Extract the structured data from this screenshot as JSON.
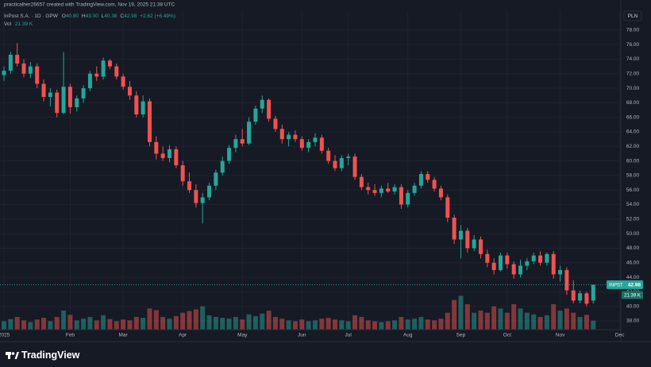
{
  "watermark": "practicalher26657 created with TradingView.com, Nov 19, 2025 21:38 UTC",
  "header": {
    "symbol": "InPost S.A. · 1D · GPW",
    "ohlc": [
      {
        "label": "O",
        "value": "40.80"
      },
      {
        "label": "H",
        "value": "43.00"
      },
      {
        "label": "L",
        "value": "40.38"
      },
      {
        "label": "C",
        "value": "42.98"
      }
    ],
    "change": "+2.62 (+6.49%)",
    "volume_label": "Vol",
    "volume_value": "21.39 K"
  },
  "currency": "PLN",
  "price_tag": {
    "symbol": "INPST",
    "value": "42.98"
  },
  "volume_tag": "21.39 K",
  "logo": "TradingView",
  "chart_data": {
    "type": "candlestick",
    "categories": [
      "2025",
      null,
      null,
      null,
      null,
      null,
      null,
      null,
      null,
      null,
      "Feb",
      null,
      null,
      null,
      null,
      null,
      null,
      null,
      "Mar",
      null,
      null,
      null,
      null,
      null,
      null,
      null,
      null,
      "Apr",
      null,
      null,
      null,
      null,
      null,
      null,
      null,
      null,
      "May",
      null,
      null,
      null,
      null,
      null,
      null,
      null,
      null,
      "Jun",
      null,
      null,
      null,
      null,
      null,
      null,
      "Jul",
      null,
      null,
      null,
      null,
      null,
      null,
      null,
      null,
      "Aug",
      null,
      null,
      null,
      null,
      null,
      null,
      null,
      "Sep",
      null,
      null,
      null,
      null,
      null,
      null,
      "Oct",
      null,
      null,
      null,
      null,
      null,
      null,
      null,
      "Nov",
      null,
      null,
      null,
      null,
      null,
      null,
      null,
      null,
      "Dec"
    ],
    "open": [
      71.8,
      72.4,
      74.6,
      73.4,
      72.0,
      73.0,
      70.6,
      68.8,
      69.4,
      66.6,
      70.2,
      67.4,
      68.6,
      70.0,
      72.0,
      71.6,
      73.8,
      73.0,
      71.6,
      70.2,
      69.0,
      66.4,
      68.2,
      62.6,
      61.0,
      60.4,
      61.6,
      59.4,
      57.2,
      56.0,
      54.2,
      55.0,
      56.6,
      58.4,
      60.0,
      61.8,
      63.0,
      62.4,
      65.4,
      67.2,
      68.4,
      65.8,
      64.4,
      63.0,
      63.6,
      63.0,
      61.8,
      62.6,
      63.2,
      61.4,
      60.0,
      59.0,
      60.4,
      60.6,
      57.8,
      56.4,
      56.0,
      55.6,
      56.2,
      55.8,
      56.4,
      54.0,
      55.6,
      56.6,
      58.2,
      57.4,
      56.2,
      55.0,
      52.2,
      49.2,
      50.4,
      48.0,
      49.2,
      47.2,
      46.0,
      45.0,
      47.0,
      45.8,
      44.4,
      45.6,
      46.2,
      47.0,
      46.0,
      47.2,
      44.4,
      45.0,
      42.2,
      40.8,
      41.8,
      40.8,
      null,
      null,
      null,
      null
    ],
    "high": [
      73.0,
      75.0,
      76.2,
      74.0,
      73.6,
      73.4,
      71.2,
      70.0,
      69.8,
      75.0,
      70.6,
      69.0,
      70.4,
      72.4,
      73.0,
      74.2,
      74.0,
      73.4,
      72.0,
      71.0,
      69.6,
      69.0,
      68.6,
      63.4,
      62.0,
      62.2,
      62.0,
      60.0,
      58.4,
      56.8,
      55.6,
      57.0,
      58.8,
      60.6,
      62.2,
      63.6,
      64.4,
      66.0,
      67.6,
      69.0,
      68.6,
      66.2,
      65.0,
      64.0,
      64.2,
      63.4,
      63.0,
      63.8,
      63.6,
      61.8,
      60.8,
      60.8,
      61.0,
      61.0,
      58.2,
      57.0,
      56.8,
      56.6,
      57.0,
      56.8,
      56.8,
      56.0,
      57.0,
      58.6,
      58.6,
      57.8,
      56.6,
      55.4,
      52.6,
      51.2,
      50.8,
      49.8,
      49.6,
      47.8,
      46.6,
      47.4,
      47.4,
      46.2,
      46.4,
      46.6,
      47.4,
      47.6,
      47.4,
      47.6,
      45.6,
      45.4,
      43.6,
      42.2,
      42.0,
      43.0,
      null,
      null,
      null,
      null
    ],
    "low": [
      71.0,
      72.0,
      73.0,
      71.5,
      71.4,
      70.0,
      68.2,
      67.5,
      66.0,
      66.4,
      66.5,
      66.8,
      68.0,
      69.6,
      71.0,
      71.2,
      72.6,
      71.2,
      69.8,
      68.4,
      66.0,
      66.0,
      62.0,
      60.2,
      60.0,
      59.8,
      59.0,
      56.6,
      55.6,
      53.6,
      51.4,
      54.6,
      56.0,
      58.0,
      59.6,
      61.2,
      62.0,
      62.2,
      65.0,
      66.6,
      65.4,
      64.0,
      62.4,
      62.0,
      62.6,
      61.4,
      61.2,
      62.0,
      61.0,
      59.6,
      58.6,
      58.6,
      59.4,
      57.4,
      56.0,
      55.4,
      55.2,
      55.0,
      55.6,
      55.4,
      53.4,
      53.6,
      55.2,
      56.2,
      57.0,
      55.8,
      54.6,
      51.6,
      48.6,
      46.6,
      47.4,
      47.6,
      46.6,
      45.4,
      44.4,
      44.8,
      45.2,
      43.8,
      44.0,
      45.0,
      45.8,
      45.6,
      45.6,
      43.8,
      43.4,
      41.6,
      40.4,
      40.4,
      40.0,
      40.38,
      null,
      null,
      null,
      null
    ],
    "close": [
      72.4,
      74.6,
      73.4,
      72.0,
      73.0,
      70.6,
      68.8,
      69.4,
      66.6,
      70.2,
      67.4,
      68.6,
      70.0,
      72.0,
      71.6,
      73.8,
      73.0,
      71.6,
      70.2,
      69.0,
      66.4,
      68.2,
      62.6,
      61.0,
      60.4,
      61.6,
      59.4,
      57.2,
      56.0,
      54.2,
      55.0,
      56.6,
      58.4,
      60.0,
      61.8,
      63.0,
      62.4,
      65.4,
      67.2,
      68.4,
      65.8,
      64.4,
      63.0,
      63.6,
      63.0,
      61.8,
      62.6,
      63.2,
      61.4,
      60.0,
      59.0,
      60.4,
      60.6,
      57.8,
      56.4,
      56.0,
      55.6,
      56.2,
      55.8,
      56.4,
      54.0,
      55.6,
      56.6,
      58.2,
      57.4,
      56.2,
      55.0,
      52.2,
      49.2,
      50.4,
      48.0,
      49.2,
      47.2,
      46.0,
      45.0,
      47.0,
      45.8,
      44.4,
      45.6,
      46.2,
      47.0,
      46.0,
      47.2,
      44.4,
      45.0,
      42.2,
      40.8,
      41.8,
      40.36,
      42.98,
      null,
      null,
      null,
      null
    ],
    "volume": [
      20,
      25,
      30,
      22,
      18,
      24,
      28,
      20,
      30,
      45,
      35,
      22,
      26,
      30,
      22,
      34,
      25,
      20,
      24,
      22,
      30,
      28,
      50,
      46,
      30,
      26,
      32,
      40,
      44,
      48,
      55,
      34,
      30,
      28,
      26,
      30,
      24,
      36,
      32,
      38,
      45,
      30,
      26,
      22,
      20,
      24,
      20,
      22,
      26,
      28,
      24,
      22,
      20,
      34,
      30,
      22,
      20,
      18,
      20,
      22,
      30,
      24,
      26,
      30,
      24,
      22,
      26,
      40,
      70,
      80,
      60,
      40,
      45,
      40,
      55,
      50,
      40,
      60,
      50,
      40,
      36,
      30,
      34,
      60,
      45,
      50,
      40,
      30,
      35,
      21.39,
      null,
      null,
      null,
      null
    ],
    "up_color": "#26a69a",
    "down_color": "#ef5350",
    "ylim": [
      36.8,
      80.6
    ],
    "yticks": [
      {
        "value": 38,
        "label": "38.00"
      },
      {
        "value": 40,
        "label": "40.00"
      },
      {
        "value": 42,
        "label": "42.00"
      },
      {
        "value": 44,
        "label": "44.00"
      },
      {
        "value": 46,
        "label": "46.00"
      },
      {
        "value": 48,
        "label": "48.00"
      },
      {
        "value": 50,
        "label": "50.00"
      },
      {
        "value": 52,
        "label": "52.00"
      },
      {
        "value": 54,
        "label": "54.00"
      },
      {
        "value": 56,
        "label": "56.00"
      },
      {
        "value": 58,
        "label": "58.00"
      },
      {
        "value": 60,
        "label": "60.00"
      },
      {
        "value": 62,
        "label": "62.00"
      },
      {
        "value": 64,
        "label": "64.00"
      },
      {
        "value": 66,
        "label": "66.00"
      },
      {
        "value": 68,
        "label": "68.00"
      },
      {
        "value": 70,
        "label": "70.00"
      },
      {
        "value": 72,
        "label": "72.00"
      },
      {
        "value": 74,
        "label": "74.00"
      },
      {
        "value": 76,
        "label": "76.00"
      },
      {
        "value": 78,
        "label": "78.00"
      }
    ],
    "vlim": [
      0,
      150
    ],
    "grid": true
  }
}
